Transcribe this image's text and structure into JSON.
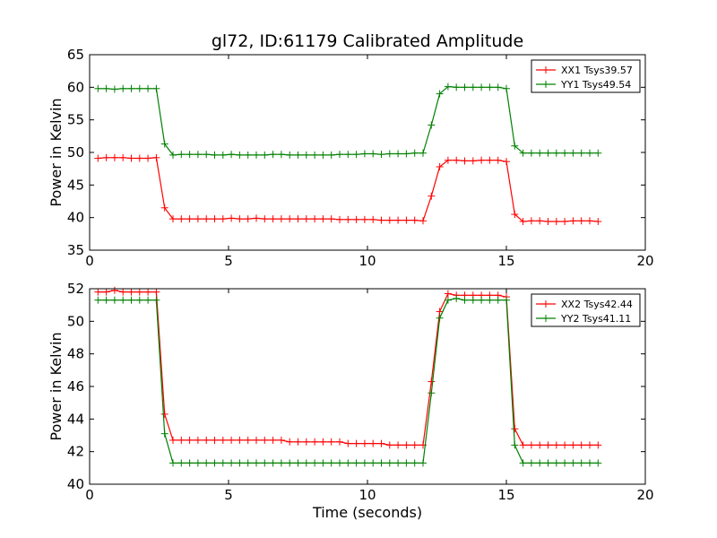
{
  "chart_data": [
    {
      "type": "line",
      "title": "gl72, ID:61179 Calibrated Amplitude",
      "xlabel": "",
      "ylabel": "Power in Kelvin",
      "xlim": [
        0,
        20
      ],
      "ylim": [
        35,
        65
      ],
      "xticks": [
        "0",
        "5",
        "10",
        "15",
        "20"
      ],
      "yticks": [
        "35",
        "40",
        "45",
        "50",
        "55",
        "60",
        "65"
      ],
      "legend_position": "top-right",
      "x": [
        0.3,
        0.6,
        0.9,
        1.2,
        1.5,
        1.8,
        2.1,
        2.4,
        2.7,
        3.0,
        3.3,
        3.6,
        3.9,
        4.2,
        4.5,
        4.8,
        5.1,
        5.4,
        5.7,
        6.0,
        6.3,
        6.6,
        6.9,
        7.2,
        7.5,
        7.8,
        8.1,
        8.4,
        8.7,
        9.0,
        9.3,
        9.6,
        9.9,
        10.2,
        10.5,
        10.8,
        11.1,
        11.4,
        11.7,
        12.0,
        12.3,
        12.6,
        12.9,
        13.2,
        13.5,
        13.8,
        14.1,
        14.4,
        14.7,
        15.0,
        15.3,
        15.6,
        15.9,
        16.2,
        16.5,
        16.8,
        17.1,
        17.4,
        17.7,
        18.0,
        18.3
      ],
      "series": [
        {
          "name": "XX1 Tsys39.57",
          "color": "#ff0000",
          "values": [
            49.1,
            49.2,
            49.2,
            49.2,
            49.1,
            49.1,
            49.1,
            49.2,
            41.5,
            39.8,
            39.8,
            39.8,
            39.8,
            39.8,
            39.8,
            39.8,
            39.9,
            39.8,
            39.8,
            39.9,
            39.8,
            39.8,
            39.8,
            39.8,
            39.8,
            39.8,
            39.8,
            39.8,
            39.8,
            39.7,
            39.7,
            39.7,
            39.7,
            39.7,
            39.6,
            39.6,
            39.6,
            39.6,
            39.6,
            39.5,
            43.3,
            47.8,
            48.8,
            48.8,
            48.7,
            48.7,
            48.8,
            48.8,
            48.8,
            48.6,
            40.5,
            39.4,
            39.5,
            39.5,
            39.4,
            39.4,
            39.4,
            39.5,
            39.5,
            39.5,
            39.4
          ]
        },
        {
          "name": "YY1 Tsys49.54",
          "color": "#008000",
          "values": [
            59.8,
            59.8,
            59.7,
            59.8,
            59.8,
            59.8,
            59.8,
            59.8,
            51.3,
            49.6,
            49.7,
            49.7,
            49.7,
            49.7,
            49.6,
            49.6,
            49.7,
            49.6,
            49.6,
            49.6,
            49.6,
            49.7,
            49.7,
            49.6,
            49.6,
            49.6,
            49.6,
            49.6,
            49.6,
            49.7,
            49.7,
            49.7,
            49.8,
            49.8,
            49.7,
            49.8,
            49.8,
            49.8,
            49.9,
            49.9,
            54.2,
            59.0,
            60.1,
            60.0,
            60.0,
            60.0,
            60.0,
            60.0,
            60.0,
            59.8,
            51.0,
            49.9,
            49.9,
            49.9,
            49.9,
            49.9,
            49.9,
            49.9,
            49.9,
            49.9,
            49.9
          ]
        }
      ]
    },
    {
      "type": "line",
      "title": "",
      "xlabel": "Time (seconds)",
      "ylabel": "Power in Kelvin",
      "xlim": [
        0,
        20
      ],
      "ylim": [
        40,
        52
      ],
      "xticks": [
        "0",
        "5",
        "10",
        "15",
        "20"
      ],
      "yticks": [
        "40",
        "42",
        "44",
        "46",
        "48",
        "50",
        "52"
      ],
      "legend_position": "top-right",
      "x": [
        0.3,
        0.6,
        0.9,
        1.2,
        1.5,
        1.8,
        2.1,
        2.4,
        2.7,
        3.0,
        3.3,
        3.6,
        3.9,
        4.2,
        4.5,
        4.8,
        5.1,
        5.4,
        5.7,
        6.0,
        6.3,
        6.6,
        6.9,
        7.2,
        7.5,
        7.8,
        8.1,
        8.4,
        8.7,
        9.0,
        9.3,
        9.6,
        9.9,
        10.2,
        10.5,
        10.8,
        11.1,
        11.4,
        11.7,
        12.0,
        12.3,
        12.6,
        12.9,
        13.2,
        13.5,
        13.8,
        14.1,
        14.4,
        14.7,
        15.0,
        15.3,
        15.6,
        15.9,
        16.2,
        16.5,
        16.8,
        17.1,
        17.4,
        17.7,
        18.0,
        18.3
      ],
      "series": [
        {
          "name": "XX2 Tsys42.44",
          "color": "#ff0000",
          "values": [
            51.8,
            51.8,
            51.9,
            51.8,
            51.8,
            51.8,
            51.8,
            51.8,
            44.3,
            42.7,
            42.7,
            42.7,
            42.7,
            42.7,
            42.7,
            42.7,
            42.7,
            42.7,
            42.7,
            42.7,
            42.7,
            42.7,
            42.7,
            42.6,
            42.6,
            42.6,
            42.6,
            42.6,
            42.6,
            42.6,
            42.5,
            42.5,
            42.5,
            42.5,
            42.5,
            42.4,
            42.4,
            42.4,
            42.4,
            42.4,
            46.3,
            50.6,
            51.7,
            51.6,
            51.6,
            51.6,
            51.6,
            51.6,
            51.6,
            51.5,
            43.4,
            42.4,
            42.4,
            42.4,
            42.4,
            42.4,
            42.4,
            42.4,
            42.4,
            42.4,
            42.4
          ]
        },
        {
          "name": "YY2 Tsys41.11",
          "color": "#008000",
          "values": [
            51.3,
            51.3,
            51.3,
            51.3,
            51.3,
            51.3,
            51.3,
            51.3,
            43.1,
            41.3,
            41.3,
            41.3,
            41.3,
            41.3,
            41.3,
            41.3,
            41.3,
            41.3,
            41.3,
            41.3,
            41.3,
            41.3,
            41.3,
            41.3,
            41.3,
            41.3,
            41.3,
            41.3,
            41.3,
            41.3,
            41.3,
            41.3,
            41.3,
            41.3,
            41.3,
            41.3,
            41.3,
            41.3,
            41.3,
            41.3,
            45.6,
            50.2,
            51.3,
            51.4,
            51.3,
            51.3,
            51.3,
            51.3,
            51.3,
            51.3,
            42.4,
            41.3,
            41.3,
            41.3,
            41.3,
            41.3,
            41.3,
            41.3,
            41.3,
            41.3,
            41.3
          ]
        }
      ]
    }
  ]
}
